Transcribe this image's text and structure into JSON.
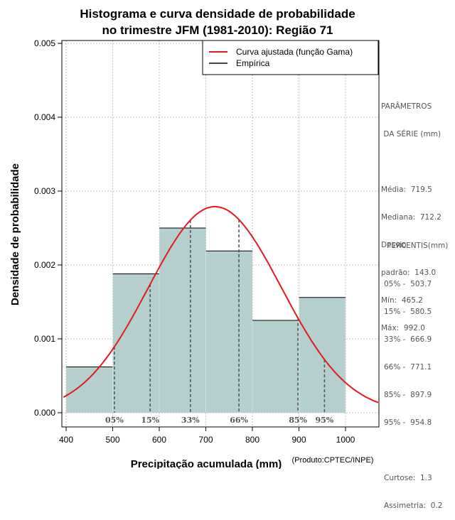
{
  "chart_data": {
    "type": "histogram",
    "title": [
      "Histograma e curva densidade de probabilidade",
      "no trimestre JFM (1981-2010): Região 71"
    ],
    "xlabel": "Precipitação acumulada (mm)",
    "ylabel": "Densidade de probabilidade",
    "credit": "(Produto:CPTEC/INPE)",
    "xlim": [
      390,
      1070
    ],
    "ylim": [
      0,
      0.005
    ],
    "xticks": [
      400,
      500,
      600,
      700,
      800,
      900,
      1000
    ],
    "yticks": [
      "0.000",
      "0.001",
      "0.002",
      "0.003",
      "0.004",
      "0.005"
    ],
    "grid": true,
    "bins": [
      {
        "from": 400,
        "to": 500,
        "density": 0.00062
      },
      {
        "from": 500,
        "to": 600,
        "density": 0.00188
      },
      {
        "from": 600,
        "to": 700,
        "density": 0.0025
      },
      {
        "from": 700,
        "to": 800,
        "density": 0.00219
      },
      {
        "from": 800,
        "to": 900,
        "density": 0.00125
      },
      {
        "from": 900,
        "to": 1000,
        "density": 0.00156
      }
    ],
    "fitted_curve": {
      "name": "Curva ajustada (função Gama)",
      "mean": 719.5,
      "sd": 143.0
    },
    "legend": [
      {
        "label": "Curva ajustada (função Gama)",
        "color": "#e41a1c"
      },
      {
        "label": "Empírica",
        "color": "#000000"
      }
    ],
    "percentile_lines": [
      {
        "label": "05%",
        "value": 503.7
      },
      {
        "label": "15%",
        "value": 580.5
      },
      {
        "label": "33%",
        "value": 666.9
      },
      {
        "label": "66%",
        "value": 771.1
      },
      {
        "label": "85%",
        "value": 897.9
      },
      {
        "label": "95%",
        "value": 954.8
      }
    ]
  },
  "colors": {
    "bar_fill": "#b5cece",
    "curve": "#e41a1c",
    "grid": "#b0b0b0",
    "percentile": "#555555"
  },
  "side_panel": {
    "params_title": [
      "PARÂMETROS",
      " DA SÉRIE (mm)"
    ],
    "params": [
      "Média:  719.5",
      "Mediana:  712.2",
      "Desvio",
      "padrão:  143.0",
      "Mín:  465.2",
      "Máx:  992.0"
    ],
    "percentis_title": "PERCENTIS(mm)",
    "percentis": [
      "05% -  503.7",
      "15% -  580.5",
      "33% -  666.9",
      "66% -  771.1",
      "85% -  897.9",
      "95% -  954.8"
    ],
    "stats": [
      "Curtose:  1.3",
      "Assimetria:  0.2"
    ]
  }
}
